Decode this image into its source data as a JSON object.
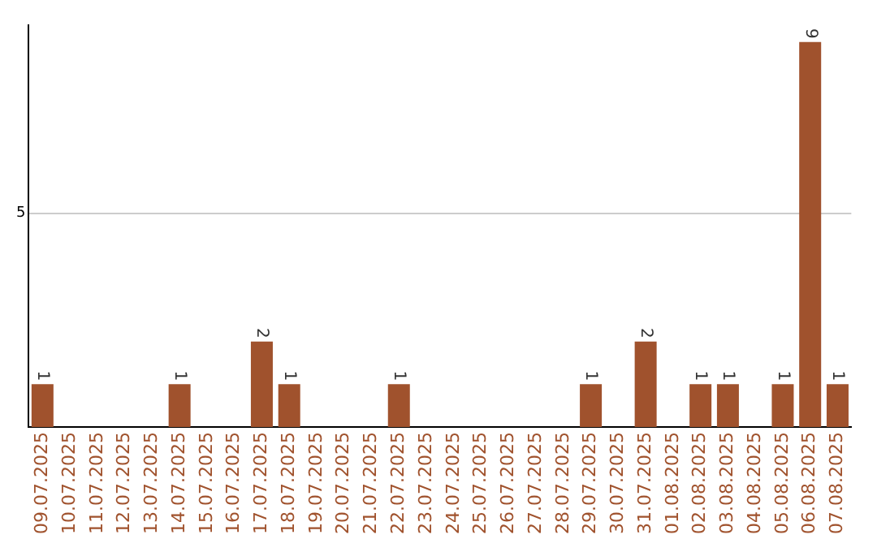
{
  "chart_data": {
    "type": "bar",
    "categories": [
      "09.07.2025",
      "10.07.2025",
      "11.07.2025",
      "12.07.2025",
      "13.07.2025",
      "14.07.2025",
      "15.07.2025",
      "16.07.2025",
      "17.07.2025",
      "18.07.2025",
      "19.07.2025",
      "20.07.2025",
      "21.07.2025",
      "22.07.2025",
      "23.07.2025",
      "24.07.2025",
      "25.07.2025",
      "26.07.2025",
      "27.07.2025",
      "28.07.2025",
      "29.07.2025",
      "30.07.2025",
      "31.07.2025",
      "01.08.2025",
      "02.08.2025",
      "03.08.2025",
      "04.08.2025",
      "05.08.2025",
      "06.08.2025",
      "07.08.2025"
    ],
    "values": [
      1,
      0,
      0,
      0,
      0,
      1,
      0,
      0,
      2,
      1,
      0,
      0,
      0,
      1,
      0,
      0,
      0,
      0,
      0,
      0,
      1,
      0,
      2,
      0,
      1,
      1,
      0,
      1,
      9,
      1
    ],
    "value_labels": [
      "1",
      null,
      null,
      null,
      null,
      "1",
      null,
      null,
      "2",
      "1",
      null,
      null,
      null,
      "1",
      null,
      null,
      null,
      null,
      null,
      null,
      "1",
      null,
      "2",
      null,
      "1",
      "1",
      null,
      "1",
      "9",
      "1"
    ],
    "color": "#a0522d",
    "ylim": [
      0,
      9.4
    ],
    "yticks": [
      5
    ],
    "grid": "y",
    "legend": false
  }
}
